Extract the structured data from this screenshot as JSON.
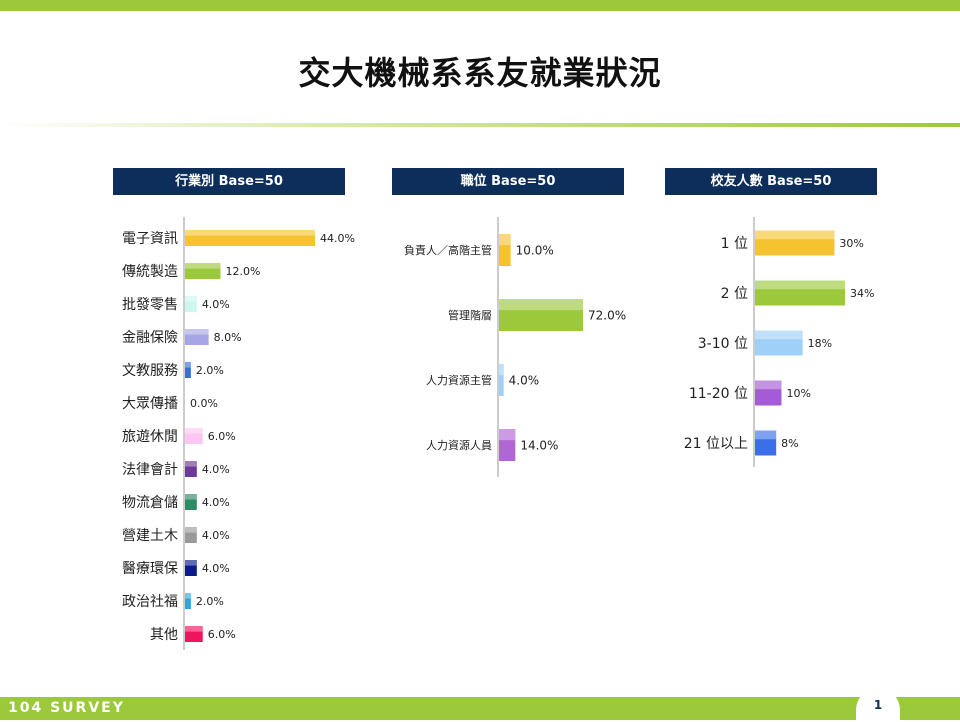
{
  "title": "交大機械系系友就業狀況",
  "footer": {
    "logo": "104 SURVEY",
    "page_number": "1"
  },
  "chart_data": [
    {
      "type": "bar",
      "orientation": "horizontal",
      "title": "行業別 Base=50",
      "categories": [
        "電子資訊",
        "傳統製造",
        "批發零售",
        "金融保險",
        "文教服務",
        "大眾傳播",
        "旅遊休閒",
        "法律會計",
        "物流倉儲",
        "營建土木",
        "醫療環保",
        "政治社福",
        "其他"
      ],
      "values": [
        44.0,
        12.0,
        4.0,
        8.0,
        2.0,
        0.0,
        6.0,
        4.0,
        4.0,
        4.0,
        4.0,
        2.0,
        6.0
      ],
      "labels": [
        "44.0%",
        "12.0%",
        "4.0%",
        "8.0%",
        "2.0%",
        "0.0%",
        "6.0%",
        "4.0%",
        "4.0%",
        "4.0%",
        "4.0%",
        "2.0%",
        "6.0%"
      ],
      "colors": [
        "#f5c330",
        "#9cc93b",
        "#ccf7ef",
        "#a6a6e6",
        "#3b6fd8",
        "#ffffff",
        "#ffc6f2",
        "#6e3a9a",
        "#2e8b66",
        "#9a9a9a",
        "#0b1a8c",
        "#30a6d6",
        "#f0145e"
      ],
      "xlim": [
        0,
        44
      ]
    },
    {
      "type": "bar",
      "orientation": "horizontal",
      "title": "職位 Base=50",
      "categories": [
        "負責人／高階主管",
        "管理階層",
        "人力資源主管",
        "人力資源人員"
      ],
      "values": [
        10.0,
        72.0,
        4.0,
        14.0
      ],
      "labels": [
        "10.0%",
        "72.0%",
        "4.0%",
        "14.0%"
      ],
      "colors": [
        "#f5c330",
        "#9cc93b",
        "#9fd0f7",
        "#b066d6"
      ],
      "xlim": [
        0,
        72
      ]
    },
    {
      "type": "bar",
      "orientation": "horizontal",
      "title": "校友人數 Base=50",
      "categories": [
        "1 位",
        "2 位",
        "3-10 位",
        "11-20 位",
        "21 位以上"
      ],
      "values": [
        30,
        34,
        18,
        10,
        8
      ],
      "labels": [
        "30%",
        "34%",
        "18%",
        "10%",
        "8%"
      ],
      "colors": [
        "#f5c330",
        "#9cc93b",
        "#9fd0f7",
        "#a35bd6",
        "#3b6fe8"
      ],
      "xlim": [
        0,
        34
      ]
    }
  ]
}
